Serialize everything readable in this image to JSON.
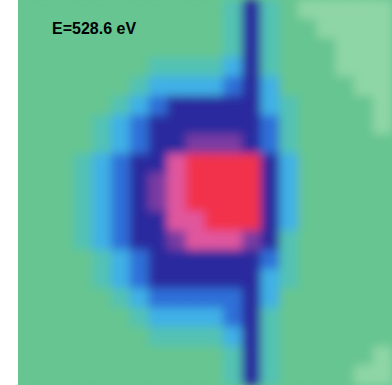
{
  "chart_data": {
    "type": "heatmap",
    "title": "E=528.6 eV",
    "tick_labels": false,
    "colors": [
      "#8fd6a6",
      "#66c590",
      "#52c2b4",
      "#3fb0e6",
      "#2f6fd8",
      "#2a2b9e",
      "#7a3aa2",
      "#e0569d",
      "#f2304c"
    ],
    "cells": [
      [
        1,
        1,
        1,
        1,
        1,
        1,
        1,
        1,
        1,
        1,
        1,
        2,
        5,
        2,
        1,
        0,
        0,
        0,
        0,
        0
      ],
      [
        1,
        1,
        1,
        1,
        1,
        1,
        1,
        1,
        1,
        1,
        1,
        2,
        5,
        2,
        1,
        1,
        0,
        0,
        0,
        0
      ],
      [
        1,
        1,
        1,
        1,
        1,
        1,
        1,
        1,
        1,
        1,
        1,
        2,
        5,
        2,
        1,
        1,
        1,
        0,
        0,
        0
      ],
      [
        1,
        1,
        1,
        1,
        1,
        1,
        1,
        2,
        2,
        2,
        2,
        3,
        5,
        2,
        1,
        1,
        1,
        0,
        0,
        0
      ],
      [
        1,
        1,
        1,
        1,
        1,
        1,
        2,
        3,
        3,
        3,
        3,
        4,
        5,
        3,
        1,
        1,
        1,
        1,
        0,
        0
      ],
      [
        1,
        1,
        1,
        1,
        1,
        2,
        3,
        4,
        5,
        5,
        5,
        5,
        5,
        3,
        2,
        1,
        1,
        1,
        1,
        0
      ],
      [
        1,
        1,
        1,
        1,
        2,
        3,
        4,
        5,
        5,
        5,
        5,
        5,
        5,
        4,
        2,
        1,
        1,
        1,
        1,
        0
      ],
      [
        1,
        1,
        1,
        1,
        2,
        3,
        4,
        5,
        5,
        6,
        6,
        6,
        5,
        4,
        2,
        1,
        1,
        1,
        1,
        1
      ],
      [
        1,
        1,
        1,
        2,
        3,
        4,
        5,
        5,
        7,
        8,
        8,
        8,
        8,
        5,
        3,
        1,
        1,
        1,
        1,
        1
      ],
      [
        1,
        1,
        1,
        2,
        3,
        4,
        5,
        6,
        7,
        8,
        8,
        8,
        8,
        5,
        3,
        1,
        1,
        1,
        1,
        1
      ],
      [
        1,
        1,
        1,
        2,
        3,
        4,
        5,
        6,
        7,
        8,
        8,
        8,
        8,
        5,
        3,
        1,
        1,
        1,
        1,
        1
      ],
      [
        1,
        1,
        1,
        2,
        3,
        4,
        5,
        5,
        7,
        7,
        8,
        8,
        8,
        5,
        3,
        1,
        1,
        1,
        1,
        1
      ],
      [
        1,
        1,
        1,
        2,
        3,
        4,
        5,
        5,
        6,
        7,
        7,
        7,
        6,
        5,
        2,
        1,
        1,
        1,
        1,
        1
      ],
      [
        1,
        1,
        1,
        1,
        2,
        3,
        4,
        5,
        5,
        5,
        5,
        5,
        5,
        4,
        2,
        1,
        1,
        1,
        1,
        1
      ],
      [
        1,
        1,
        1,
        1,
        2,
        3,
        4,
        5,
        5,
        5,
        5,
        5,
        5,
        3,
        2,
        1,
        1,
        1,
        1,
        1
      ],
      [
        1,
        1,
        1,
        1,
        1,
        2,
        3,
        4,
        4,
        4,
        4,
        4,
        5,
        3,
        1,
        1,
        1,
        1,
        1,
        1
      ],
      [
        1,
        1,
        1,
        1,
        1,
        1,
        2,
        3,
        3,
        3,
        3,
        4,
        5,
        2,
        1,
        1,
        1,
        1,
        1,
        1
      ],
      [
        1,
        1,
        1,
        1,
        1,
        1,
        1,
        2,
        2,
        2,
        2,
        3,
        5,
        2,
        1,
        1,
        1,
        1,
        1,
        1
      ],
      [
        1,
        1,
        1,
        1,
        1,
        1,
        1,
        1,
        1,
        1,
        1,
        2,
        5,
        2,
        1,
        1,
        1,
        1,
        1,
        0
      ],
      [
        1,
        1,
        1,
        1,
        1,
        1,
        1,
        1,
        1,
        1,
        1,
        2,
        5,
        2,
        1,
        1,
        1,
        1,
        0,
        0
      ]
    ]
  }
}
